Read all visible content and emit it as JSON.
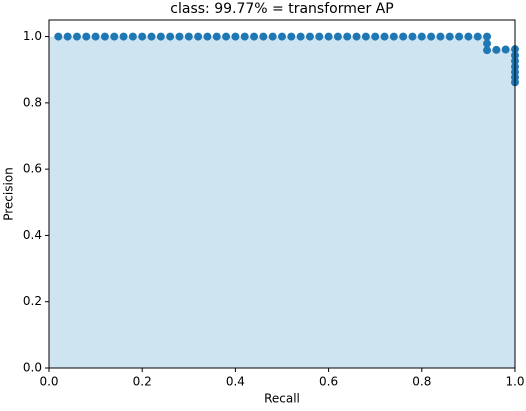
{
  "chart_data": {
    "type": "scatter",
    "title": "class: 99.77% = transformer AP",
    "xlabel": "Recall",
    "ylabel": "Precision",
    "x": [
      0.02,
      0.04,
      0.06,
      0.08,
      0.1,
      0.12,
      0.14,
      0.16,
      0.18,
      0.2,
      0.22,
      0.24,
      0.26,
      0.28,
      0.3,
      0.32,
      0.34,
      0.36,
      0.38,
      0.4,
      0.42,
      0.44,
      0.46,
      0.48,
      0.5,
      0.52,
      0.54,
      0.56,
      0.58,
      0.6,
      0.62,
      0.64,
      0.66,
      0.68,
      0.7,
      0.72,
      0.74,
      0.76,
      0.78,
      0.8,
      0.82,
      0.84,
      0.86,
      0.88,
      0.9,
      0.92,
      0.94,
      0.94,
      0.94,
      0.96,
      0.98,
      1.0,
      1.0,
      1.0,
      1.0,
      1.0,
      1.0,
      1.0
    ],
    "y": [
      1.0,
      1.0,
      1.0,
      1.0,
      1.0,
      1.0,
      1.0,
      1.0,
      1.0,
      1.0,
      1.0,
      1.0,
      1.0,
      1.0,
      1.0,
      1.0,
      1.0,
      1.0,
      1.0,
      1.0,
      1.0,
      1.0,
      1.0,
      1.0,
      1.0,
      1.0,
      1.0,
      1.0,
      1.0,
      1.0,
      1.0,
      1.0,
      1.0,
      1.0,
      1.0,
      1.0,
      1.0,
      1.0,
      1.0,
      1.0,
      1.0,
      1.0,
      1.0,
      1.0,
      1.0,
      1.0,
      1.0,
      0.979,
      0.959,
      0.96,
      0.961,
      0.962,
      0.943,
      0.926,
      0.909,
      0.893,
      0.877,
      0.862
    ],
    "color": "#1f77b4",
    "fill_color": "#cfe4f1",
    "xlim": [
      0,
      1
    ],
    "ylim": [
      0,
      1.05
    ],
    "xticks": [
      {
        "value": 0,
        "label": "0.0"
      },
      0.2,
      0.4,
      0.6,
      0.8,
      {
        "value": 1,
        "label": "1.0"
      }
    ],
    "yticks": [
      {
        "value": 0,
        "label": "0.0"
      },
      0.2,
      0.4,
      0.6,
      0.8,
      {
        "value": 1,
        "label": "1.0"
      }
    ]
  }
}
